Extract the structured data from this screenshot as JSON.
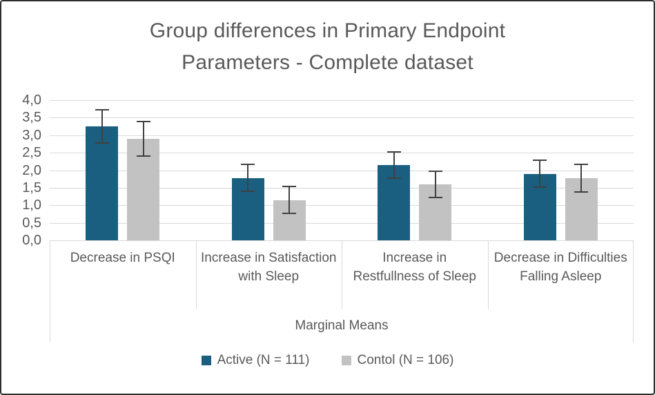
{
  "title": {
    "line1": "Group differences in Primary Endpoint",
    "line2": "Parameters - Complete dataset"
  },
  "axis": {
    "xlabel": "Marginal Means"
  },
  "legend": [
    {
      "label": "Active (N = 111)",
      "color": "#1a5f80"
    },
    {
      "label": "Contol (N = 106)",
      "color": "#c2c2c2"
    }
  ],
  "colors": {
    "active_bar": "#1a5f80",
    "control_bar": "#c2c2c2",
    "error_bar": "#404040",
    "gridline": "#d9d9d9",
    "text": "#595959"
  },
  "chart_data": {
    "type": "bar",
    "title": "Group differences in Primary Endpoint Parameters - Complete dataset",
    "categories": [
      "Decrease in PSQI",
      "Increase in Satisfaction with Sleep",
      "Increase in Restfullness of Sleep",
      "Decrease in Difficulties Falling Asleep"
    ],
    "series": [
      {
        "name": "Active (N = 111)",
        "color": "#1a5f80",
        "values": [
          3.25,
          1.78,
          2.15,
          1.9
        ],
        "errors": [
          0.47,
          0.38,
          0.37,
          0.39
        ]
      },
      {
        "name": "Contol (N = 106)",
        "color": "#c2c2c2",
        "values": [
          2.9,
          1.15,
          1.6,
          1.77
        ],
        "errors": [
          0.49,
          0.38,
          0.38,
          0.39
        ]
      }
    ],
    "xlabel": "Marginal Means",
    "ylabel": "",
    "ylim": [
      0,
      4
    ],
    "ytick_step": 0.5,
    "decimal_separator": ",",
    "grid": true,
    "error_bars": true,
    "legend_position": "bottom"
  }
}
